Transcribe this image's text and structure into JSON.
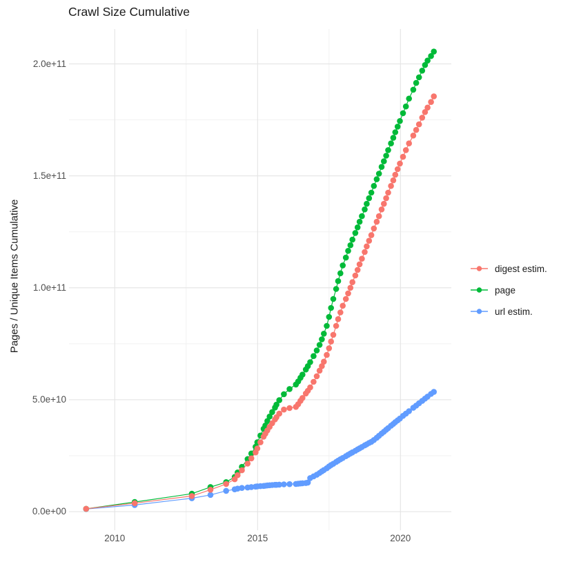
{
  "chart": {
    "title": "Crawl Size Cumulative",
    "y_axis_title": "Pages / Unique Items Cumulative"
  },
  "chart_data": {
    "type": "scatter",
    "title": "Crawl Size Cumulative",
    "xlabel": "",
    "ylabel": "Pages / Unique Items Cumulative",
    "grid": true,
    "legend_position": "right",
    "x_domain": [
      2008.4,
      2021.78
    ],
    "y_domain_e9": [
      -8.3,
      215.6
    ],
    "value_unit": "pages (values in billions, 1e9)",
    "x_major_ticks": [
      {
        "value": 2010,
        "label": "2010"
      },
      {
        "value": 2015,
        "label": "2015"
      },
      {
        "value": 2020,
        "label": "2020"
      }
    ],
    "x_minor_ticks": [
      2012.5,
      2017.5
    ],
    "y_major_ticks": [
      {
        "value_e9": 0,
        "label": "0.0e+00"
      },
      {
        "value_e9": 50,
        "label": "5.0e+10"
      },
      {
        "value_e9": 100,
        "label": "1.0e+11"
      },
      {
        "value_e9": 150,
        "label": "1.5e+11"
      },
      {
        "value_e9": 200,
        "label": "2.0e+11"
      }
    ],
    "y_minor_ticks_e9": [
      25,
      75,
      125,
      175
    ],
    "draw_order": [
      "url estim.",
      "page",
      "digest estim."
    ],
    "series": [
      {
        "name": "digest estim.",
        "color": "#F8766D",
        "points": [
          [
            2009.0,
            1.3
          ],
          [
            2010.7,
            3.8
          ],
          [
            2012.7,
            7.0
          ],
          [
            2013.35,
            9.8
          ],
          [
            2013.9,
            12.4
          ],
          [
            2014.2,
            14.5
          ],
          [
            2014.3,
            16.3
          ],
          [
            2014.45,
            18.5
          ],
          [
            2014.65,
            21.5
          ],
          [
            2014.78,
            23.8
          ],
          [
            2014.93,
            26.5
          ],
          [
            2014.99,
            28.2
          ],
          [
            2015.1,
            31.0
          ],
          [
            2015.21,
            33.5
          ],
          [
            2015.27,
            34.8
          ],
          [
            2015.34,
            36.3
          ],
          [
            2015.42,
            37.9
          ],
          [
            2015.51,
            39.5
          ],
          [
            2015.61,
            41.2
          ],
          [
            2015.66,
            42.2
          ],
          [
            2015.76,
            43.8
          ],
          [
            2015.92,
            45.6
          ],
          [
            2016.12,
            46.3
          ],
          [
            2016.34,
            46.8
          ],
          [
            2016.42,
            48.0
          ],
          [
            2016.5,
            49.5
          ],
          [
            2016.57,
            50.8
          ],
          [
            2016.69,
            52.8
          ],
          [
            2016.76,
            54.0
          ],
          [
            2016.84,
            55.5
          ],
          [
            2016.96,
            58.0
          ],
          [
            2017.07,
            60.5
          ],
          [
            2017.17,
            63.0
          ],
          [
            2017.25,
            65.0
          ],
          [
            2017.32,
            67.0
          ],
          [
            2017.42,
            70.0
          ],
          [
            2017.5,
            73.0
          ],
          [
            2017.57,
            76.0
          ],
          [
            2017.65,
            79.0
          ],
          [
            2017.75,
            83.0
          ],
          [
            2017.82,
            86.0
          ],
          [
            2017.9,
            89.0
          ],
          [
            2017.98,
            92.0
          ],
          [
            2018.09,
            95.0
          ],
          [
            2018.17,
            97.5
          ],
          [
            2018.25,
            100.0
          ],
          [
            2018.32,
            102.5
          ],
          [
            2018.42,
            105.5
          ],
          [
            2018.5,
            108.0
          ],
          [
            2018.57,
            110.5
          ],
          [
            2018.65,
            113.0
          ],
          [
            2018.75,
            116.0
          ],
          [
            2018.82,
            118.5
          ],
          [
            2018.9,
            121.0
          ],
          [
            2018.98,
            123.5
          ],
          [
            2019.07,
            126.5
          ],
          [
            2019.17,
            129.5
          ],
          [
            2019.25,
            132.0
          ],
          [
            2019.34,
            135.0
          ],
          [
            2019.42,
            137.5
          ],
          [
            2019.5,
            140.0
          ],
          [
            2019.57,
            142.5
          ],
          [
            2019.67,
            145.5
          ],
          [
            2019.75,
            148.0
          ],
          [
            2019.82,
            150.5
          ],
          [
            2019.9,
            153.0
          ],
          [
            2019.98,
            155.5
          ],
          [
            2020.09,
            158.5
          ],
          [
            2020.19,
            161.5
          ],
          [
            2020.3,
            164.5
          ],
          [
            2020.45,
            168.0
          ],
          [
            2020.55,
            170.5
          ],
          [
            2020.65,
            173.0
          ],
          [
            2020.76,
            176.0
          ],
          [
            2020.86,
            178.5
          ],
          [
            2020.95,
            180.5
          ],
          [
            2021.07,
            183.0
          ],
          [
            2021.17,
            185.5
          ]
        ]
      },
      {
        "name": "page",
        "color": "#00BA38",
        "points": [
          [
            2009.0,
            1.3
          ],
          [
            2010.7,
            4.3
          ],
          [
            2012.7,
            8.0
          ],
          [
            2013.35,
            11.0
          ],
          [
            2013.9,
            13.2
          ],
          [
            2014.2,
            15.5
          ],
          [
            2014.3,
            17.5
          ],
          [
            2014.45,
            20.0
          ],
          [
            2014.65,
            23.5
          ],
          [
            2014.78,
            26.0
          ],
          [
            2014.93,
            29.0
          ],
          [
            2014.99,
            31.0
          ],
          [
            2015.1,
            34.0
          ],
          [
            2015.21,
            37.0
          ],
          [
            2015.27,
            38.5
          ],
          [
            2015.34,
            40.5
          ],
          [
            2015.42,
            42.5
          ],
          [
            2015.51,
            44.5
          ],
          [
            2015.61,
            46.5
          ],
          [
            2015.66,
            47.8
          ],
          [
            2015.76,
            49.8
          ],
          [
            2015.92,
            52.5
          ],
          [
            2016.12,
            54.8
          ],
          [
            2016.34,
            56.8
          ],
          [
            2016.42,
            58.2
          ],
          [
            2016.5,
            59.8
          ],
          [
            2016.57,
            61.2
          ],
          [
            2016.69,
            63.5
          ],
          [
            2016.76,
            65.0
          ],
          [
            2016.84,
            66.8
          ],
          [
            2016.96,
            69.5
          ],
          [
            2017.07,
            72.0
          ],
          [
            2017.17,
            74.5
          ],
          [
            2017.25,
            77.0
          ],
          [
            2017.32,
            79.5
          ],
          [
            2017.42,
            83.0
          ],
          [
            2017.5,
            87.0
          ],
          [
            2017.57,
            91.0
          ],
          [
            2017.65,
            95.0
          ],
          [
            2017.75,
            99.5
          ],
          [
            2017.82,
            103.0
          ],
          [
            2017.9,
            106.5
          ],
          [
            2017.98,
            110.0
          ],
          [
            2018.09,
            113.5
          ],
          [
            2018.17,
            116.5
          ],
          [
            2018.25,
            119.0
          ],
          [
            2018.32,
            121.5
          ],
          [
            2018.42,
            124.5
          ],
          [
            2018.5,
            127.0
          ],
          [
            2018.57,
            129.5
          ],
          [
            2018.65,
            132.0
          ],
          [
            2018.75,
            135.0
          ],
          [
            2018.82,
            137.5
          ],
          [
            2018.9,
            140.0
          ],
          [
            2018.98,
            142.5
          ],
          [
            2019.07,
            145.5
          ],
          [
            2019.17,
            148.5
          ],
          [
            2019.25,
            151.0
          ],
          [
            2019.34,
            154.0
          ],
          [
            2019.42,
            156.5
          ],
          [
            2019.5,
            159.0
          ],
          [
            2019.57,
            161.5
          ],
          [
            2019.67,
            164.5
          ],
          [
            2019.75,
            167.0
          ],
          [
            2019.82,
            169.5
          ],
          [
            2019.9,
            172.0
          ],
          [
            2019.98,
            174.5
          ],
          [
            2020.09,
            178.0
          ],
          [
            2020.19,
            181.0
          ],
          [
            2020.3,
            184.5
          ],
          [
            2020.45,
            188.5
          ],
          [
            2020.55,
            191.5
          ],
          [
            2020.65,
            194.0
          ],
          [
            2020.76,
            197.0
          ],
          [
            2020.86,
            199.5
          ],
          [
            2020.95,
            201.5
          ],
          [
            2021.07,
            203.5
          ],
          [
            2021.17,
            205.5
          ]
        ]
      },
      {
        "name": "url estim.",
        "color": "#619CFF",
        "points": [
          [
            2009.0,
            1.2
          ],
          [
            2010.7,
            3.0
          ],
          [
            2012.7,
            6.0
          ],
          [
            2013.35,
            7.5
          ],
          [
            2013.9,
            9.3
          ],
          [
            2014.2,
            10.0
          ],
          [
            2014.3,
            10.3
          ],
          [
            2014.45,
            10.6
          ],
          [
            2014.65,
            10.8
          ],
          [
            2014.78,
            11.0
          ],
          [
            2014.93,
            11.2
          ],
          [
            2014.99,
            11.3
          ],
          [
            2015.1,
            11.4
          ],
          [
            2015.21,
            11.5
          ],
          [
            2015.27,
            11.6
          ],
          [
            2015.34,
            11.7
          ],
          [
            2015.42,
            11.8
          ],
          [
            2015.51,
            11.9
          ],
          [
            2015.61,
            12.0
          ],
          [
            2015.66,
            12.0
          ],
          [
            2015.76,
            12.1
          ],
          [
            2015.92,
            12.2
          ],
          [
            2016.12,
            12.3
          ],
          [
            2016.34,
            12.4
          ],
          [
            2016.42,
            12.5
          ],
          [
            2016.5,
            12.6
          ],
          [
            2016.57,
            12.7
          ],
          [
            2016.69,
            12.8
          ],
          [
            2016.76,
            13.0
          ],
          [
            2016.84,
            15.0
          ],
          [
            2016.96,
            15.8
          ],
          [
            2017.07,
            16.5
          ],
          [
            2017.17,
            17.3
          ],
          [
            2017.25,
            18.0
          ],
          [
            2017.32,
            18.6
          ],
          [
            2017.42,
            19.4
          ],
          [
            2017.5,
            20.2
          ],
          [
            2017.57,
            20.8
          ],
          [
            2017.65,
            21.4
          ],
          [
            2017.75,
            22.2
          ],
          [
            2017.82,
            22.8
          ],
          [
            2017.9,
            23.4
          ],
          [
            2017.98,
            24.0
          ],
          [
            2018.09,
            24.8
          ],
          [
            2018.17,
            25.4
          ],
          [
            2018.25,
            26.0
          ],
          [
            2018.32,
            26.5
          ],
          [
            2018.42,
            27.2
          ],
          [
            2018.5,
            27.8
          ],
          [
            2018.57,
            28.3
          ],
          [
            2018.65,
            28.9
          ],
          [
            2018.75,
            29.6
          ],
          [
            2018.82,
            30.1
          ],
          [
            2018.9,
            30.7
          ],
          [
            2018.98,
            31.2
          ],
          [
            2019.07,
            32.0
          ],
          [
            2019.17,
            33.0
          ],
          [
            2019.25,
            33.9
          ],
          [
            2019.34,
            34.9
          ],
          [
            2019.42,
            35.7
          ],
          [
            2019.5,
            36.6
          ],
          [
            2019.57,
            37.3
          ],
          [
            2019.67,
            38.4
          ],
          [
            2019.75,
            39.2
          ],
          [
            2019.82,
            40.0
          ],
          [
            2019.9,
            40.8
          ],
          [
            2019.98,
            41.6
          ],
          [
            2020.09,
            42.8
          ],
          [
            2020.19,
            43.8
          ],
          [
            2020.3,
            44.9
          ],
          [
            2020.45,
            46.4
          ],
          [
            2020.55,
            47.4
          ],
          [
            2020.65,
            48.4
          ],
          [
            2020.76,
            49.5
          ],
          [
            2020.86,
            50.5
          ],
          [
            2020.95,
            51.4
          ],
          [
            2021.07,
            52.6
          ],
          [
            2021.17,
            53.5
          ]
        ]
      }
    ],
    "colors": {
      "grid_major": "#e4e4e4",
      "grid_minor": "#f1f1f1",
      "tick_text": "#4d4d4d",
      "title_text": "#1a1a1a"
    }
  }
}
